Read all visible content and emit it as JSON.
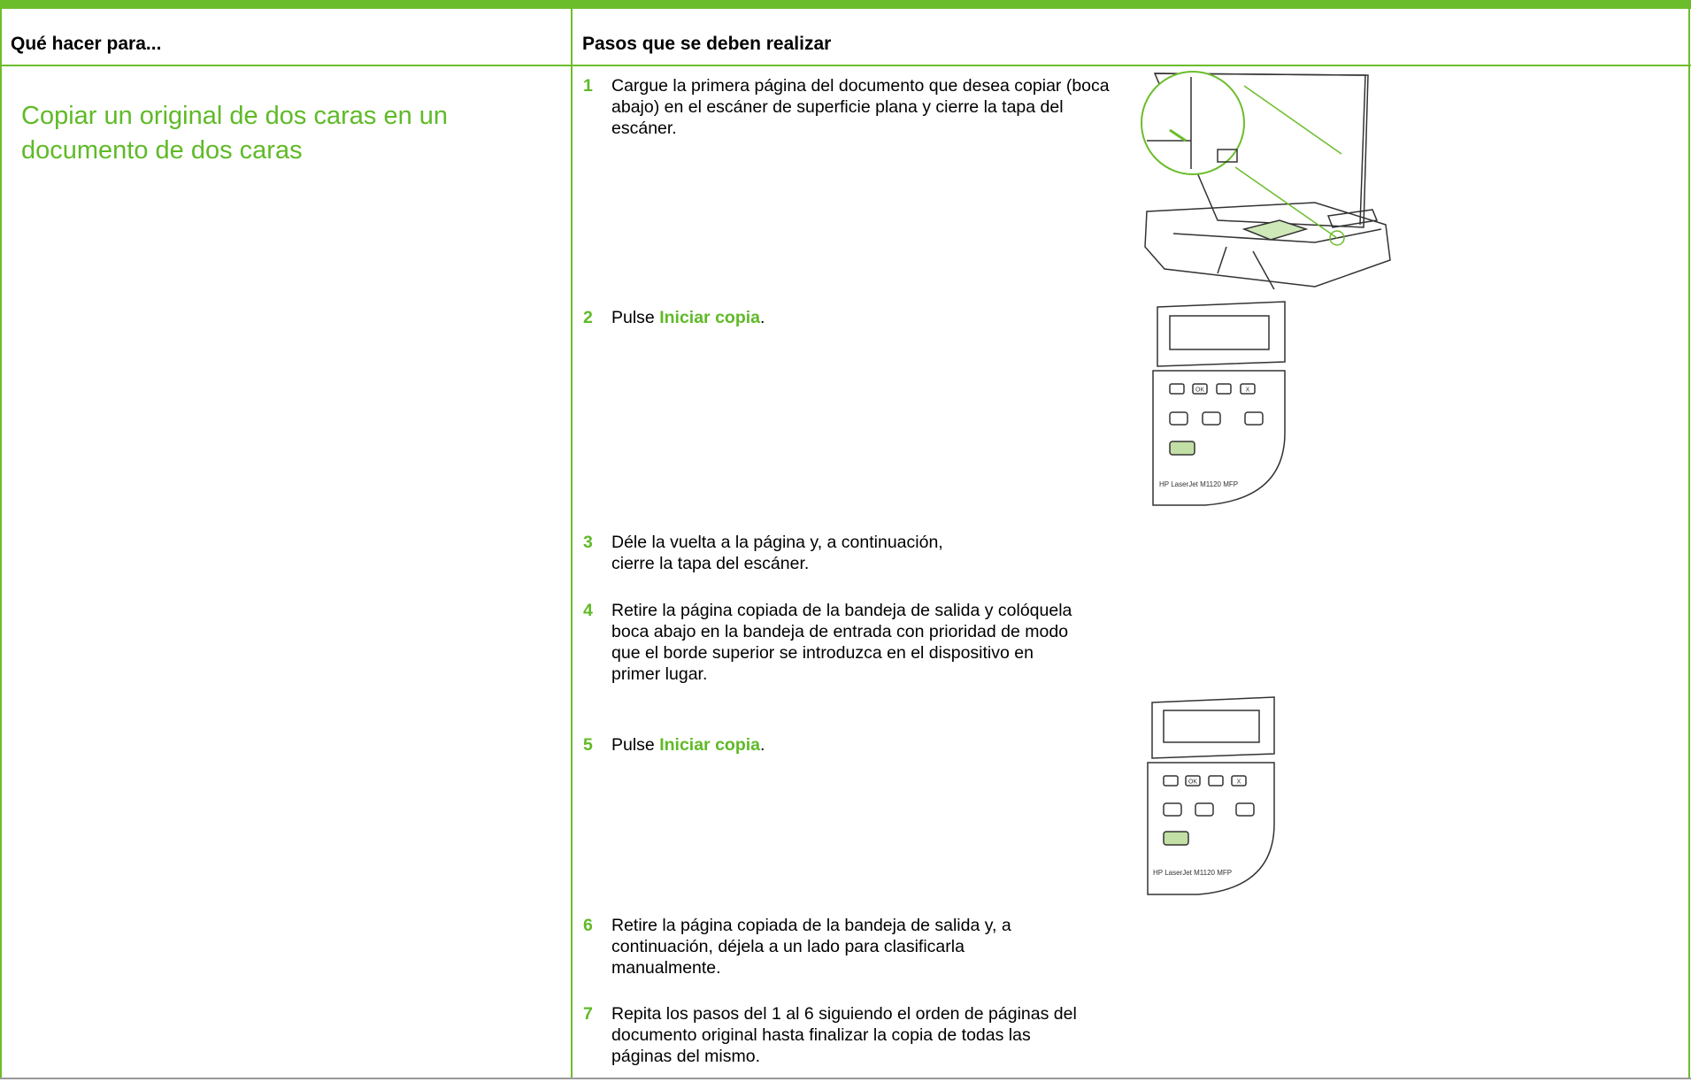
{
  "header": {
    "col1": "Qué hacer para...",
    "col2": "Pasos que se deben realizar"
  },
  "task": {
    "title": "Copiar un original de dos caras en un documento de dos caras"
  },
  "steps": [
    {
      "number": "1",
      "text": [
        "Cargue la primera página del documento que desea copiar (boca abajo) en el escáner de superficie plana y cierre la tapa del escáner."
      ]
    },
    {
      "number": "2",
      "text": [
        "Pulse ",
        "Iniciar copia",
        "."
      ]
    },
    {
      "number": "3",
      "text": [
        "Déle la vuelta a la página y, a continuación, cierre la tapa del escáner."
      ]
    },
    {
      "number": "4",
      "text": [
        "Retire la página copiada de la bandeja de salida y colóquela boca abajo en la bandeja de entrada con prioridad de modo que el borde superior se introduzca en el dispositivo en primer lugar."
      ]
    },
    {
      "number": "5",
      "text": [
        "Pulse ",
        "Iniciar copia",
        "."
      ]
    },
    {
      "number": "6",
      "text": [
        "Retire la página copiada de la bandeja de salida y, a continuación, déjela a un lado para clasificarla manualmente."
      ]
    },
    {
      "number": "7",
      "text": [
        "Repita los pasos del 1 al 6 siguiendo el orden de páginas del documento original hasta finalizar la copia de todas las páginas del mismo."
      ]
    }
  ],
  "panels": [
    {
      "model": "HP LaserJet M1120 MFP"
    },
    {
      "model": "HP LaserJet M1120 MFP"
    }
  ],
  "panel_keys": [
    "OK",
    "X"
  ]
}
